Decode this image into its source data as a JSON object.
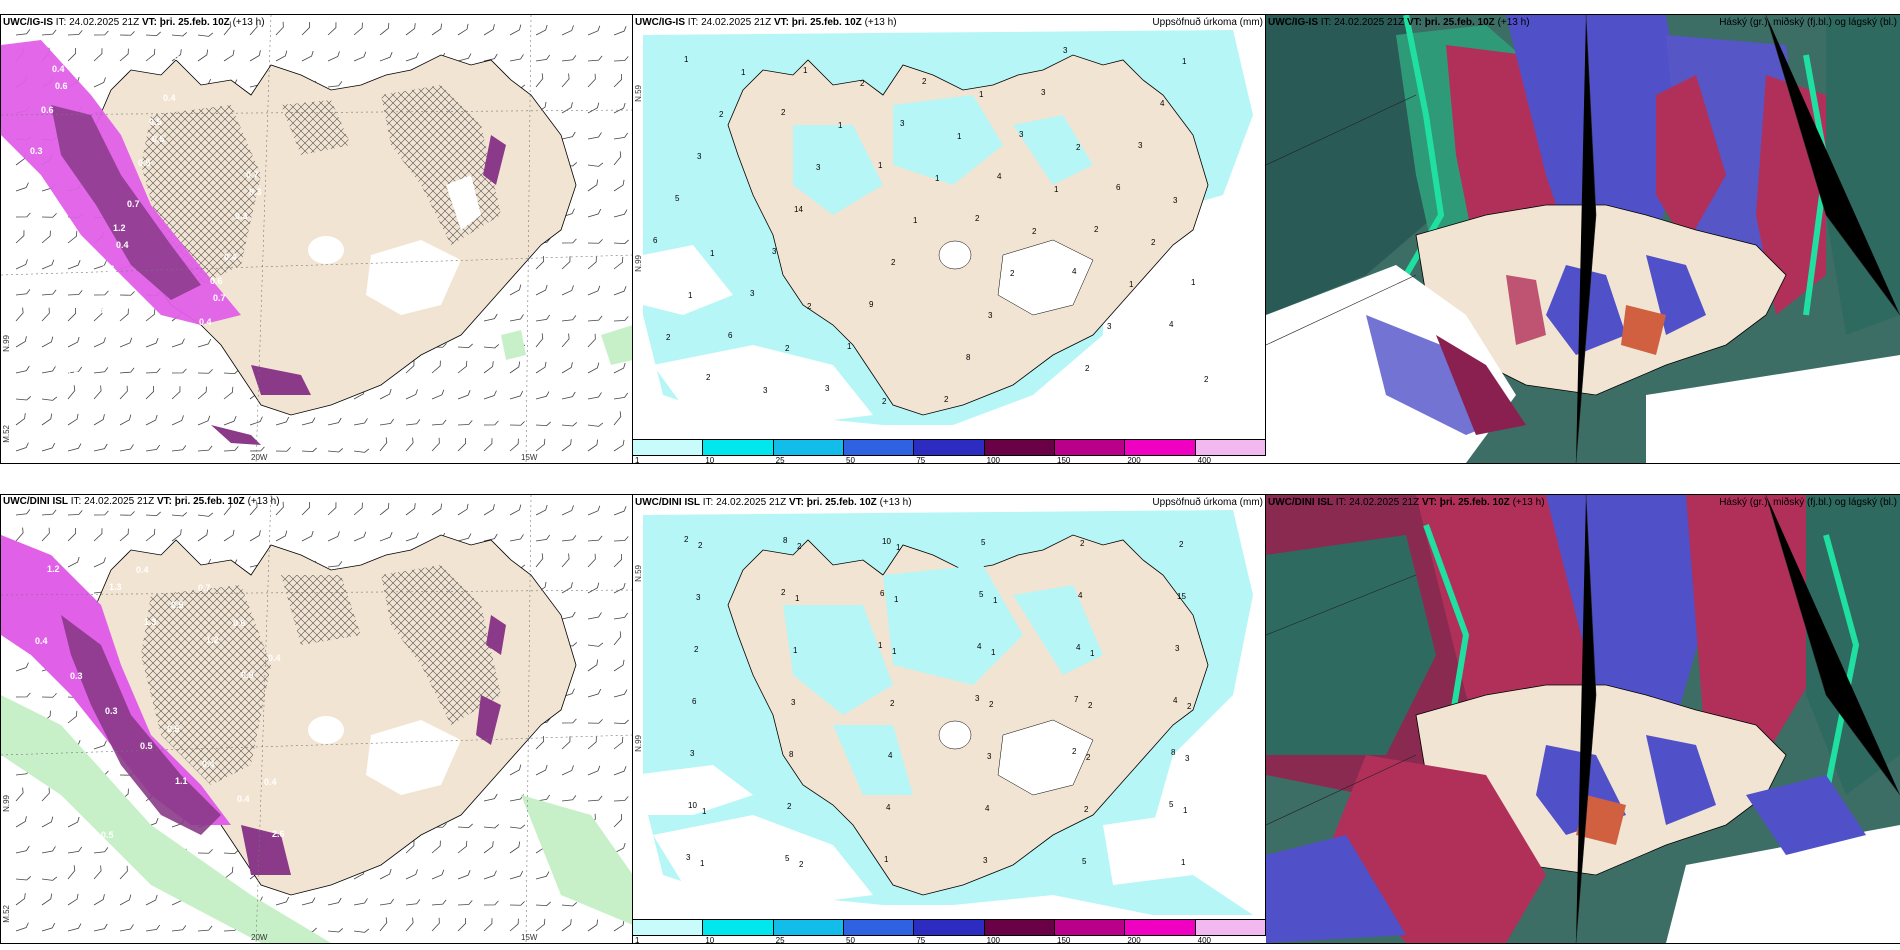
{
  "panels": [
    {
      "id": "p1",
      "model": "UWC/IG-IS",
      "it_label": "IT:",
      "it_value": "24.02.2025 21Z",
      "vt_label": "VT:",
      "vt_value": "þri. 25.feb. 10Z",
      "lead": "(+13 h)",
      "right_title": "",
      "lat_label": "N.99",
      "lat_label2": "N.59",
      "lon_label_a": "20W",
      "lon_label_b": "15W",
      "left_lab": "M.52",
      "values": [
        "0.4",
        "0.5",
        "0.7",
        "1.2",
        "0.6",
        "0.5",
        "0.4",
        "0.6",
        "0.5",
        "0.3",
        "0.6",
        "0.4",
        "0.5",
        "0.4",
        "0.3",
        "0.7",
        "0.4",
        "0.5",
        "0.3",
        "0.6",
        "0.5",
        "0.3",
        "0.4",
        "0.7"
      ]
    },
    {
      "id": "p2",
      "model": "UWC/IG-IS",
      "it_label": "IT:",
      "it_value": "24.02.2025 21Z",
      "vt_label": "VT:",
      "vt_value": "þri. 25.feb. 10Z",
      "lead": "(+13 h)",
      "right_title": "Uppsöfnuð úrkoma (mm)",
      "lat_label": "N.99",
      "lat_label2": "N.59",
      "values": [
        "1",
        "2",
        "1",
        "2",
        "4",
        "4",
        "2",
        "1",
        "3",
        "4",
        "2",
        "1",
        "6",
        "3",
        "2",
        "3",
        "6",
        "6",
        "3",
        "1",
        "2",
        "3",
        "3",
        "5",
        "3",
        "9",
        "8",
        "3",
        "4",
        "3",
        "14",
        "2",
        "3",
        "2",
        "1",
        "2",
        "3",
        "1",
        "2",
        "3",
        "2",
        "1",
        "1",
        "1",
        "2",
        "1",
        "2",
        "3",
        "2",
        "1",
        "1",
        "2",
        "1",
        "2",
        "2",
        "1",
        "2",
        "3",
        "1",
        "2"
      ]
    },
    {
      "id": "p3",
      "model": "UWC/IG-IS",
      "it_label": "IT:",
      "it_value": "24.02.2025 21Z",
      "vt_label": "VT:",
      "vt_value": "þri. 25.feb. 10Z",
      "lead": "(+13 h)",
      "right_title": "Háský (gr.), miðský (fj.bl.) og lágský (bl.)"
    },
    {
      "id": "p4",
      "model": "UWC/DINI ISL",
      "it_label": "IT:",
      "it_value": "24.02.2025 21Z",
      "vt_label": "VT:",
      "vt_value": "þri. 25.feb. 10Z",
      "lead": "(+13",
      "lead2": "h)",
      "right_title": "",
      "lat_label": "N.99",
      "lat_label2": "N.59",
      "lon_label_a": "20W",
      "lon_label_b": "15W",
      "left_lab": "M.52",
      "values": [
        "1.2",
        "1.3",
        "0.9",
        "0.8",
        "1.1",
        "2.6",
        "1.3",
        "1.2",
        "0.9",
        "0.5",
        "0.4",
        "0.6",
        "0.5",
        "0.4",
        "0.3",
        "0.4",
        "0.3",
        "0.4",
        "0.6",
        "0.3",
        "0.5",
        "0.4",
        "0.5",
        "0.7",
        "0.4"
      ]
    },
    {
      "id": "p5",
      "model": "UWC/DINI ISL",
      "it_label": "IT:",
      "it_value": "24.02.2025 21Z",
      "vt_label": "VT:",
      "vt_value": "þri. 25.feb. 10Z",
      "lead": "(+13 h)",
      "right_title": "Uppsöfnuð úrkoma (mm)",
      "lat_label": "N.99",
      "lat_label2": "N.59",
      "values": [
        "2",
        "2",
        "1",
        "3",
        "2",
        "5",
        "3",
        "8",
        "6",
        "4",
        "7",
        "8",
        "10",
        "5",
        "10",
        "5",
        "4",
        "4",
        "3",
        "2",
        "1",
        "5",
        "4",
        "3",
        "6",
        "8",
        "4",
        "3",
        "2",
        "15",
        "2",
        "3",
        "4",
        "4",
        "5",
        "2",
        "3",
        "1",
        "2",
        "3",
        "2",
        "1",
        "2",
        "1",
        "1",
        "2",
        "2",
        "1",
        "1",
        "2",
        "1",
        "1",
        "2",
        "3",
        "1",
        "2",
        "1",
        "1",
        "1",
        "2"
      ]
    },
    {
      "id": "p6",
      "model": "UWC/DINI ISL",
      "it_label": "IT:",
      "it_value": "24.02.2025 21Z",
      "vt_label": "VT:",
      "vt_value": "þri. 25.feb. 10Z",
      "lead": "(+13 h)",
      "right_title": "Háský (gr.), miðský (fj.bl.) og lágský (bl.)"
    }
  ],
  "colorbar": {
    "labels": [
      "1",
      "10",
      "25",
      "50",
      "75",
      "100",
      "150",
      "200",
      "400"
    ],
    "colors": [
      "#c8fbfb",
      "#00e8ee",
      "#13bde9",
      "#2f62e3",
      "#2c2cc0",
      "#6a0046",
      "#b8008a",
      "#f000c0",
      "#f2b8f0"
    ]
  },
  "colors": {
    "land": "#f2e4d2",
    "sea_precip": "#b6f6f6",
    "wind_precip": "#e060e8",
    "wind_precip_dark": "#7a2a78",
    "cloud_high": "#2a9a78",
    "cloud_mid": "#5050c8",
    "cloud_low": "#b0305a"
  }
}
